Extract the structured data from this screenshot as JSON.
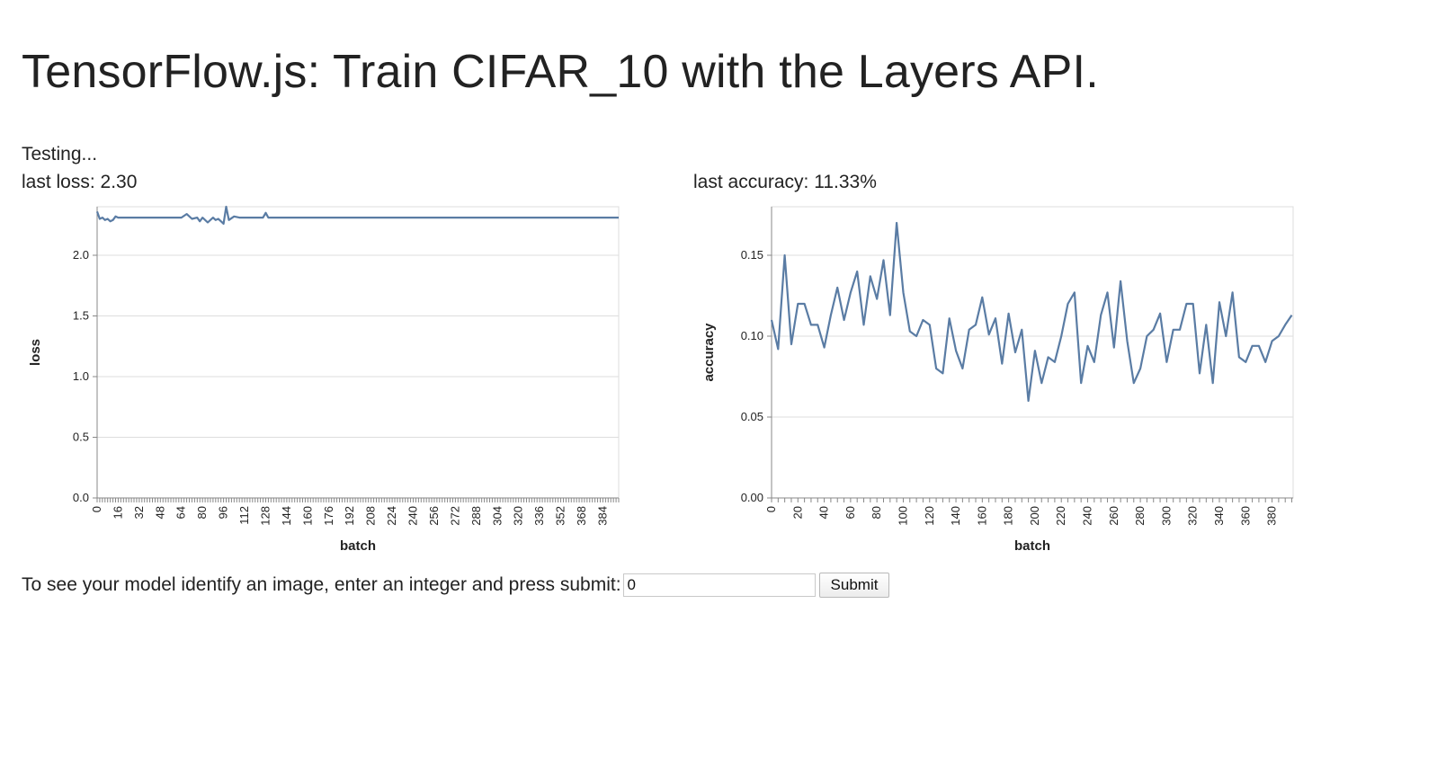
{
  "page": {
    "title": "TensorFlow.js: Train CIFAR_10 with the Layers API.",
    "status": "Testing...",
    "last_loss": "last loss: 2.30",
    "last_accuracy": "last accuracy: 11.33%"
  },
  "identify": {
    "prompt": "To see your model identify an image, enter an integer and press submit:",
    "input_value": "0",
    "submit_label": "Submit"
  },
  "colors": {
    "line": "#5a7ca4",
    "grid": "#dddddd",
    "axis": "#888888"
  },
  "chart_data": [
    {
      "type": "line",
      "xlabel": "batch",
      "ylabel": "loss",
      "ylim": [
        0,
        2.4
      ],
      "xlim": [
        0,
        396
      ],
      "yticks": [
        0.0,
        0.5,
        1.0,
        1.5,
        2.0
      ],
      "ytick_labels": [
        "0.0",
        "0.5",
        "1.0",
        "1.5",
        "2.0"
      ],
      "xtick_step": 2,
      "xtick_label_step": 16,
      "grid": true,
      "series": [
        {
          "x": [
            0,
            2,
            4,
            6,
            8,
            10,
            12,
            14,
            16,
            20,
            30,
            40,
            50,
            60,
            64,
            68,
            72,
            76,
            78,
            80,
            84,
            88,
            90,
            92,
            94,
            96,
            98,
            100,
            104,
            108,
            112,
            120,
            126,
            128,
            130,
            132,
            136,
            140,
            150,
            200,
            250,
            300,
            350,
            396
          ],
          "y": [
            2.36,
            2.3,
            2.31,
            2.29,
            2.3,
            2.28,
            2.29,
            2.32,
            2.31,
            2.31,
            2.31,
            2.31,
            2.31,
            2.31,
            2.31,
            2.34,
            2.3,
            2.31,
            2.28,
            2.31,
            2.27,
            2.31,
            2.29,
            2.3,
            2.28,
            2.26,
            2.4,
            2.29,
            2.32,
            2.31,
            2.31,
            2.31,
            2.31,
            2.35,
            2.31,
            2.31,
            2.31,
            2.31,
            2.31,
            2.31,
            2.31,
            2.31,
            2.31,
            2.31
          ]
        }
      ]
    },
    {
      "type": "line",
      "xlabel": "batch",
      "ylabel": "accuracy",
      "ylim": [
        0,
        0.18
      ],
      "xlim": [
        0,
        396
      ],
      "yticks": [
        0.0,
        0.05,
        0.1,
        0.15
      ],
      "ytick_labels": [
        "0.00",
        "0.05",
        "0.10",
        "0.15"
      ],
      "xtick_step": 5,
      "xtick_label_step": 20,
      "grid": true,
      "series": [
        {
          "x": [
            0,
            5,
            10,
            15,
            20,
            25,
            30,
            35,
            40,
            45,
            50,
            55,
            60,
            65,
            70,
            75,
            80,
            85,
            90,
            95,
            100,
            105,
            110,
            115,
            120,
            125,
            130,
            135,
            140,
            145,
            150,
            155,
            160,
            165,
            170,
            175,
            180,
            185,
            190,
            195,
            200,
            205,
            210,
            215,
            220,
            225,
            230,
            235,
            240,
            245,
            250,
            255,
            260,
            265,
            270,
            275,
            280,
            285,
            290,
            295,
            300,
            305,
            310,
            315,
            320,
            325,
            330,
            335,
            340,
            345,
            350,
            355,
            360,
            365,
            370,
            375,
            380,
            385,
            390,
            395
          ],
          "y": [
            0.11,
            0.092,
            0.15,
            0.095,
            0.12,
            0.12,
            0.107,
            0.107,
            0.093,
            0.113,
            0.13,
            0.11,
            0.127,
            0.14,
            0.107,
            0.137,
            0.123,
            0.147,
            0.113,
            0.17,
            0.127,
            0.103,
            0.1,
            0.11,
            0.107,
            0.08,
            0.077,
            0.111,
            0.091,
            0.08,
            0.104,
            0.107,
            0.124,
            0.101,
            0.111,
            0.083,
            0.114,
            0.09,
            0.104,
            0.06,
            0.091,
            0.071,
            0.087,
            0.084,
            0.1,
            0.12,
            0.127,
            0.071,
            0.094,
            0.084,
            0.113,
            0.127,
            0.093,
            0.134,
            0.097,
            0.071,
            0.08,
            0.1,
            0.104,
            0.114,
            0.084,
            0.104,
            0.104,
            0.12,
            0.12,
            0.077,
            0.107,
            0.071,
            0.121,
            0.1,
            0.127,
            0.087,
            0.084,
            0.094,
            0.094,
            0.084,
            0.097,
            0.1,
            0.107,
            0.113
          ]
        }
      ]
    }
  ]
}
